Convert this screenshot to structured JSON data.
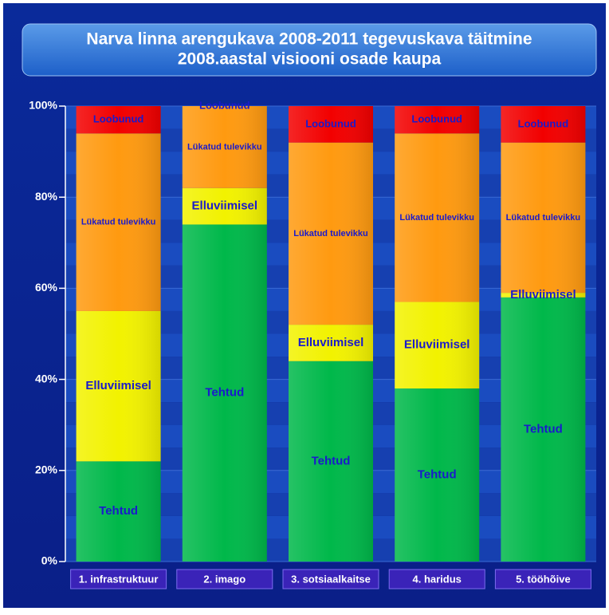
{
  "chart_data": {
    "type": "stacked_bar_100",
    "title": [
      "Narva linna arengukava 2008-2011 tegevuskava täitmine",
      "2008.aastal visiooni osade kaupa"
    ],
    "categories": [
      "1. infrastruktuur",
      "2. imago",
      "3. sotsiaalkaitse",
      "4. haridus",
      "5. tööhõive"
    ],
    "series": [
      {
        "name": "Tehtud",
        "color": "#00b84a",
        "values": [
          22,
          74,
          44,
          38,
          58
        ]
      },
      {
        "name": "Elluviimisel",
        "color": "#f2f200",
        "values": [
          33,
          8,
          8,
          19,
          1
        ]
      },
      {
        "name": "Lükatud tulevikku",
        "color": "#ff9a10",
        "values": [
          39,
          18,
          40,
          37,
          33
        ]
      },
      {
        "name": "Loobunud",
        "color": "#f20000",
        "values": [
          6,
          0,
          8,
          6,
          8
        ]
      }
    ],
    "ylim": [
      0,
      100
    ],
    "yticks": [
      {
        "value": 0,
        "label": "0%"
      },
      {
        "value": 20,
        "label": "20%"
      },
      {
        "value": 40,
        "label": "40%"
      },
      {
        "value": 60,
        "label": "60%"
      },
      {
        "value": 80,
        "label": "80%"
      },
      {
        "value": 100,
        "label": "100%"
      }
    ],
    "grid": true
  }
}
